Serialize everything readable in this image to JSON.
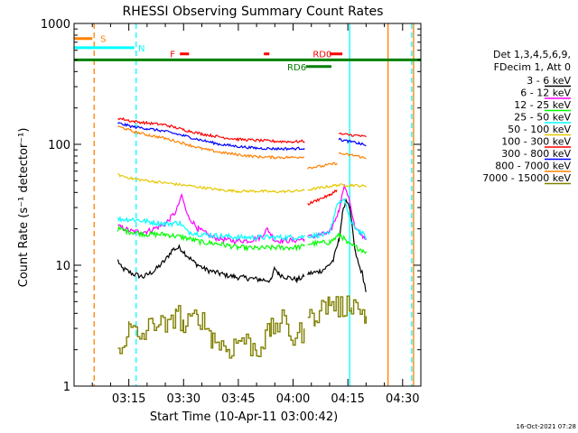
{
  "chart_data": {
    "type": "line",
    "title": "RHESSI Observing Summary Count Rates",
    "xlabel": "Start Time (10-Apr-11 03:00:42)",
    "ylabel": "Count Rate (s⁻¹ detector⁻¹)",
    "yscale": "log",
    "ylim": [
      1,
      1000
    ],
    "xlim_minutes": [
      0,
      95
    ],
    "ytick_labels": [
      "1",
      "10",
      "100",
      "1000"
    ],
    "xticks": [
      {
        "t": 15,
        "label": "03:15"
      },
      {
        "t": 30,
        "label": "03:30"
      },
      {
        "t": 45,
        "label": "03:45"
      },
      {
        "t": 60,
        "label": "04:00"
      },
      {
        "t": 75,
        "label": "04:15"
      },
      {
        "t": 90,
        "label": "04:30"
      }
    ],
    "legend": {
      "header": [
        "Det 1,3,4,5,6,9,",
        "FDecim 1, Att 0"
      ],
      "placement": "right",
      "entries": [
        {
          "label": "3 - 6 keV",
          "color": "#000000"
        },
        {
          "label": "6 - 12 keV",
          "color": "#ff00ff"
        },
        {
          "label": "12 - 25 keV",
          "color": "#00ff00"
        },
        {
          "label": "25 - 50 keV",
          "color": "#00ffff"
        },
        {
          "label": "50 - 100 keV",
          "color": "#e6c800"
        },
        {
          "label": "100 - 300 keV",
          "color": "#ff0000"
        },
        {
          "label": "300 - 800 keV",
          "color": "#0000ff"
        },
        {
          "label": "800 - 7000 keV",
          "color": "#ff8000"
        },
        {
          "label": "7000 - 15000 keV",
          "color": "#808000"
        }
      ]
    },
    "series": [
      {
        "name": "3 - 6 keV",
        "color": "#000000",
        "segments": [
          [
            [
              12,
              11
            ],
            [
              13,
              9.5
            ],
            [
              16,
              8.5
            ],
            [
              19,
              8
            ],
            [
              22,
              9
            ],
            [
              25,
              11
            ],
            [
              27,
              13.5
            ],
            [
              29,
              14
            ],
            [
              31,
              12
            ],
            [
              33,
              10.5
            ],
            [
              36,
              9.2
            ],
            [
              40,
              8.5
            ],
            [
              44,
              8
            ],
            [
              48,
              7.8
            ],
            [
              51,
              7.6
            ],
            [
              54,
              7.5
            ],
            [
              55,
              9.5
            ],
            [
              56,
              8.5
            ],
            [
              58,
              8
            ],
            [
              61,
              7.6
            ],
            [
              63,
              8
            ]
          ],
          [
            [
              64,
              8.5
            ],
            [
              67,
              8.8
            ],
            [
              69,
              9.5
            ],
            [
              71,
              11
            ],
            [
              72.5,
              16
            ],
            [
              73.5,
              26
            ],
            [
              74.5,
              35
            ],
            [
              75.5,
              30
            ],
            [
              77,
              13
            ],
            [
              78,
              10
            ],
            [
              79,
              8.5
            ],
            [
              80,
              6
            ]
          ]
        ]
      },
      {
        "name": "6 - 12 keV",
        "color": "#ff00ff",
        "segments": [
          [
            [
              12,
              21
            ],
            [
              16,
              19
            ],
            [
              20,
              19
            ],
            [
              25,
              22
            ],
            [
              28,
              28
            ],
            [
              29.5,
              38
            ],
            [
              31,
              26
            ],
            [
              34,
              20
            ],
            [
              38,
              17
            ],
            [
              43,
              16
            ],
            [
              48,
              16
            ],
            [
              51,
              17
            ],
            [
              53,
              20
            ],
            [
              55,
              16
            ],
            [
              60,
              16
            ],
            [
              63,
              16.5
            ]
          ],
          [
            [
              64,
              17
            ],
            [
              70,
              18.5
            ],
            [
              72.5,
              28
            ],
            [
              74,
              46
            ],
            [
              75.5,
              34
            ],
            [
              77,
              20
            ],
            [
              80,
              16.5
            ]
          ]
        ]
      },
      {
        "name": "12 - 25 keV",
        "color": "#00ff00",
        "segments": [
          [
            [
              12,
              20
            ],
            [
              15,
              19
            ],
            [
              20,
              18
            ],
            [
              25,
              18
            ],
            [
              30,
              17
            ],
            [
              35,
              15.5
            ],
            [
              40,
              15
            ],
            [
              45,
              14
            ],
            [
              50,
              13.8
            ],
            [
              55,
              14
            ],
            [
              60,
              14
            ],
            [
              63,
              14.3
            ]
          ],
          [
            [
              64,
              15
            ],
            [
              70,
              15.5
            ],
            [
              73,
              18
            ],
            [
              75,
              15
            ],
            [
              80,
              13
            ]
          ]
        ]
      },
      {
        "name": "25 - 50 keV",
        "color": "#00ffff",
        "segments": [
          [
            [
              12,
              24
            ],
            [
              16,
              24
            ],
            [
              20,
              23
            ],
            [
              25,
              22
            ],
            [
              29,
              22.5
            ],
            [
              31,
              19
            ],
            [
              35,
              18
            ],
            [
              40,
              17.5
            ],
            [
              45,
              17
            ],
            [
              50,
              17
            ],
            [
              55,
              17
            ],
            [
              60,
              17
            ],
            [
              63,
              17.2
            ]
          ],
          [
            [
              64,
              17.5
            ],
            [
              70,
              18
            ],
            [
              72,
              32
            ],
            [
              74,
              35
            ],
            [
              76,
              22
            ],
            [
              80,
              17
            ]
          ]
        ]
      },
      {
        "name": "50 - 100 keV",
        "color": "#e6c800",
        "segments": [
          [
            [
              12,
              56
            ],
            [
              16,
              52
            ],
            [
              20,
              50
            ],
            [
              25,
              48
            ],
            [
              30,
              46
            ],
            [
              35,
              44
            ],
            [
              40,
              42
            ],
            [
              45,
              41
            ],
            [
              50,
              41
            ],
            [
              55,
              40.5
            ],
            [
              60,
              41
            ],
            [
              63,
              41.5
            ]
          ],
          [
            [
              64,
              42
            ],
            [
              68,
              44
            ],
            [
              72,
              46
            ],
            [
              76,
              46
            ],
            [
              80,
              45
            ]
          ]
        ]
      },
      {
        "name": "100 - 300 keV",
        "color": "#ff0000",
        "segments": [
          [
            [
              12,
              165
            ],
            [
              14,
              160
            ],
            [
              16,
              155
            ],
            [
              20,
              150
            ],
            [
              25,
              145
            ],
            [
              30,
              132
            ],
            [
              35,
              122
            ],
            [
              40,
              115
            ],
            [
              45,
              110
            ],
            [
              50,
              108
            ],
            [
              55,
              106
            ],
            [
              60,
              105
            ],
            [
              63,
              106
            ]
          ],
          [
            [
              64,
              32
            ],
            [
              67,
              35
            ],
            [
              70,
              38
            ],
            [
              72,
              42
            ]
          ],
          [
            [
              72.5,
              122
            ],
            [
              75,
              120
            ],
            [
              78,
              118
            ],
            [
              80,
              115
            ]
          ]
        ]
      },
      {
        "name": "300 - 800 keV",
        "color": "#0000ff",
        "segments": [
          [
            [
              12,
              150
            ],
            [
              14,
              145
            ],
            [
              16,
              140
            ],
            [
              20,
              135
            ],
            [
              25,
              128
            ],
            [
              30,
              118
            ],
            [
              35,
              108
            ],
            [
              40,
              100
            ],
            [
              45,
              96
            ],
            [
              50,
              93
            ],
            [
              55,
              92
            ],
            [
              60,
              92
            ],
            [
              63,
              93
            ]
          ],
          [
            [
              72.5,
              110
            ],
            [
              75,
              106
            ],
            [
              78,
              102
            ],
            [
              80,
              98
            ]
          ]
        ]
      },
      {
        "name": "800 - 7000 keV",
        "color": "#ff8000",
        "segments": [
          [
            [
              12,
              140
            ],
            [
              14,
              135
            ],
            [
              16,
              128
            ],
            [
              20,
              120
            ],
            [
              25,
              112
            ],
            [
              30,
              102
            ],
            [
              35,
              92
            ],
            [
              40,
              86
            ],
            [
              45,
              82
            ],
            [
              50,
              79
            ],
            [
              55,
              78
            ],
            [
              60,
              78
            ],
            [
              63,
              79
            ]
          ],
          [
            [
              64,
              64
            ],
            [
              68,
              66
            ],
            [
              72,
              70
            ]
          ],
          [
            [
              72.5,
              84
            ],
            [
              75,
              82
            ],
            [
              78,
              80
            ],
            [
              80,
              76
            ]
          ]
        ]
      },
      {
        "name": "7000 - 15000 keV",
        "color": "#808000",
        "segments": [
          [
            [
              12,
              2
            ],
            [
              15,
              3
            ],
            [
              18,
              2.5
            ],
            [
              22,
              3.5
            ],
            [
              26,
              3
            ],
            [
              28,
              4.5
            ],
            [
              30,
              3
            ],
            [
              34,
              4
            ],
            [
              38,
              2.5
            ],
            [
              42,
              2
            ],
            [
              46,
              2.5
            ],
            [
              50,
              2
            ],
            [
              54,
              3
            ],
            [
              57,
              3.5
            ],
            [
              60,
              2.5
            ],
            [
              63,
              3
            ]
          ],
          [
            [
              64,
              3.5
            ],
            [
              66,
              4
            ],
            [
              70,
              5
            ],
            [
              73,
              4.5
            ],
            [
              76,
              5
            ],
            [
              80,
              3.8
            ]
          ]
        ]
      }
    ],
    "state_bars": [
      {
        "label": "S",
        "color": "#ff8000",
        "t_start": -3,
        "t_end": 5,
        "y": 750,
        "label_t": 8
      },
      {
        "label": "N",
        "color": "#00ffff",
        "t_start": -3,
        "t_end": 16.5,
        "y": 630,
        "label_t": 18.5
      },
      {
        "label": "F",
        "color": "#ff0000",
        "t_start": 29,
        "t_end": 31.5,
        "y": 560,
        "label_t": 27
      },
      {
        "label": "",
        "color": "#ff0000",
        "t_start": 52,
        "t_end": 53.5,
        "y": 560,
        "label_t": null
      },
      {
        "label": "RD0",
        "color": "#ff0000",
        "t_start": 70,
        "t_end": 73.5,
        "y": 560,
        "label_t": 68
      },
      {
        "label": "",
        "color": "#008000",
        "t_start": -3,
        "t_end": 95,
        "y": 500,
        "label_t": null
      },
      {
        "label": "RD6",
        "color": "#008000",
        "t_start": 63.5,
        "t_end": 70.5,
        "y": 440,
        "label_t": 61
      }
    ],
    "vlines": [
      {
        "t": 5.5,
        "color": "#ff8000",
        "style": "dashed"
      },
      {
        "t": 17,
        "color": "#00ffff",
        "style": "dashed"
      },
      {
        "t": 75.5,
        "color": "#00ffff",
        "style": "solid"
      },
      {
        "t": 86,
        "color": "#ff8000",
        "style": "solid"
      },
      {
        "t": 93,
        "color": "#ff8000",
        "style": "solid"
      },
      {
        "t": 92.5,
        "color": "#00ffff",
        "style": "dashed"
      }
    ],
    "timestamp": "16-Oct-2021 07:28"
  }
}
